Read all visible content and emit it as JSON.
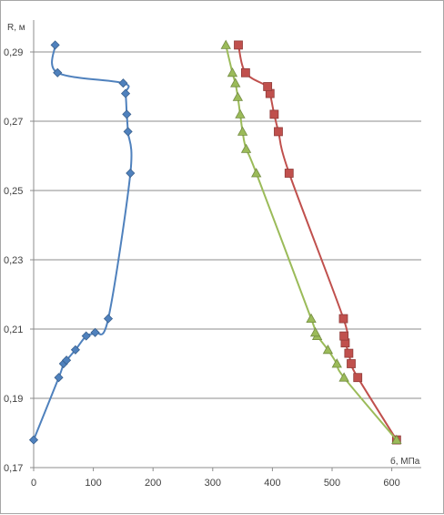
{
  "chart_data": {
    "type": "scatter",
    "title": "",
    "ylabel": "R, м",
    "xlabel": "б, МПа",
    "xlim": [
      0,
      600
    ],
    "ylim": [
      0.17,
      0.295
    ],
    "x_ticks": [
      "0",
      "100",
      "200",
      "300",
      "400",
      "500",
      "600"
    ],
    "y_ticks": [
      "0,17",
      "0,19",
      "0,21",
      "0,23",
      "0,25",
      "0,27",
      "0,29"
    ],
    "grid": "horizontal",
    "series": [
      {
        "color": "#4f81bd",
        "marker": "diamond",
        "points": [
          [
            0,
            0.178
          ],
          [
            42,
            0.196
          ],
          [
            50,
            0.2
          ],
          [
            55,
            0.201
          ],
          [
            70,
            0.204
          ],
          [
            88,
            0.208
          ],
          [
            103,
            0.209
          ],
          [
            125,
            0.213
          ],
          [
            162,
            0.255
          ],
          [
            158,
            0.267
          ],
          [
            156,
            0.272
          ],
          [
            154,
            0.278
          ],
          [
            150,
            0.281
          ],
          [
            40,
            0.284
          ],
          [
            36,
            0.292
          ]
        ]
      },
      {
        "color": "#c0504d",
        "marker": "square",
        "points": [
          [
            608,
            0.178
          ],
          [
            543,
            0.196
          ],
          [
            532,
            0.2
          ],
          [
            528,
            0.203
          ],
          [
            522,
            0.206
          ],
          [
            520,
            0.208
          ],
          [
            519,
            0.213
          ],
          [
            428,
            0.255
          ],
          [
            410,
            0.267
          ],
          [
            403,
            0.272
          ],
          [
            396,
            0.278
          ],
          [
            392,
            0.28
          ],
          [
            355,
            0.284
          ],
          [
            343,
            0.292
          ]
        ]
      },
      {
        "color": "#9bbb59",
        "marker": "triangle",
        "points": [
          [
            608,
            0.178
          ],
          [
            520,
            0.196
          ],
          [
            508,
            0.2
          ],
          [
            493,
            0.204
          ],
          [
            475,
            0.208
          ],
          [
            472,
            0.209
          ],
          [
            465,
            0.213
          ],
          [
            373,
            0.255
          ],
          [
            356,
            0.262
          ],
          [
            350,
            0.267
          ],
          [
            346,
            0.272
          ],
          [
            342,
            0.277
          ],
          [
            338,
            0.281
          ],
          [
            333,
            0.284
          ],
          [
            322,
            0.292
          ]
        ]
      }
    ]
  }
}
